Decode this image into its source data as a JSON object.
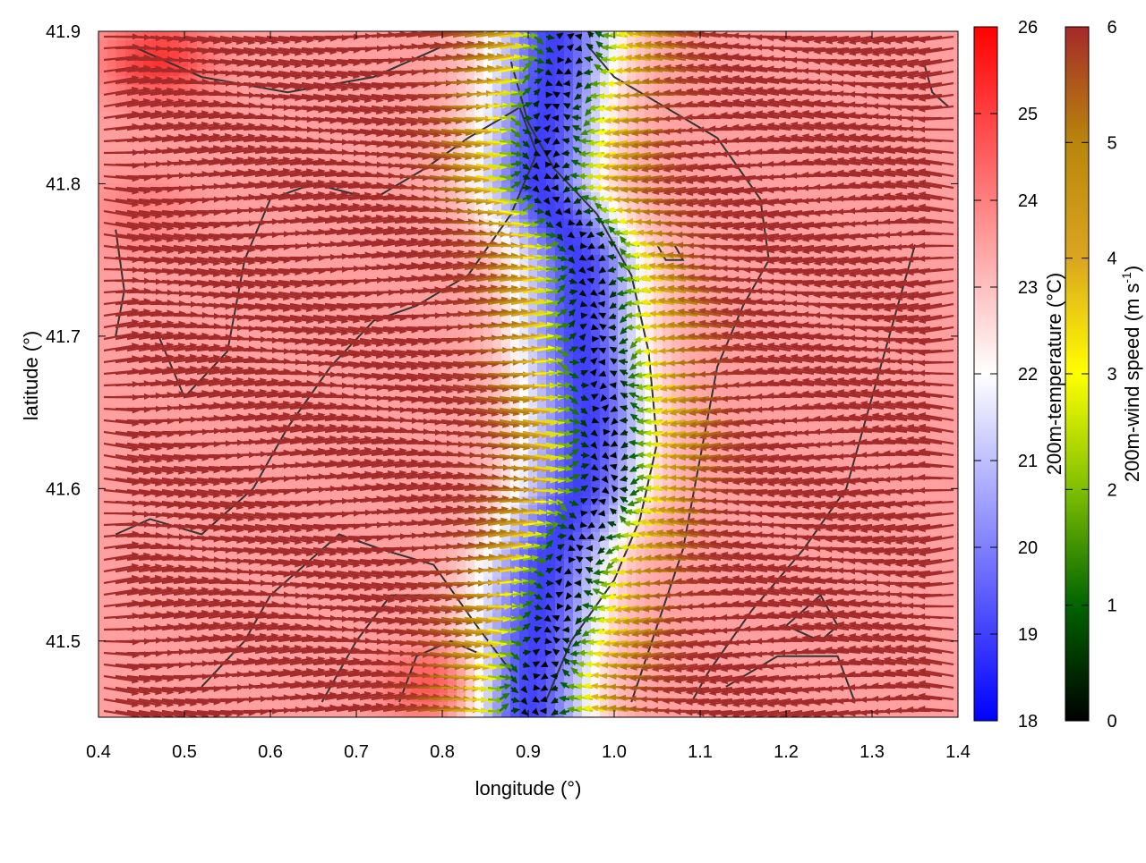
{
  "chart_data": {
    "type": "heatmap",
    "title": "",
    "xlabel": "longitude (°)",
    "ylabel": "latitude (°)",
    "xlim": [
      0.4,
      1.4
    ],
    "ylim": [
      41.45,
      41.9
    ],
    "xticks": [
      "0.4",
      "0.5",
      "0.6",
      "0.7",
      "0.8",
      "0.9",
      "1.0",
      "1.1",
      "1.2",
      "1.3",
      "1.4"
    ],
    "yticks": [
      "41.5",
      "41.6",
      "41.7",
      "41.8",
      "41.9"
    ],
    "grid": false,
    "temperature": {
      "label_main": "200m-temperature (",
      "label_unit": "°C",
      "label_close": ")",
      "range": [
        18,
        26
      ],
      "ticks": [
        "18",
        "19",
        "20",
        "21",
        "22",
        "23",
        "24",
        "25",
        "26"
      ],
      "colors": [
        "#0000ff",
        "#ffffff",
        "#ff0000"
      ]
    },
    "wind_speed": {
      "label_main": "200m-wind speed (m s",
      "label_sup": "-1",
      "label_close": ")",
      "range": [
        0,
        6
      ],
      "ticks": [
        "0",
        "1",
        "2",
        "3",
        "4",
        "5",
        "6"
      ],
      "colors": [
        "#000000",
        "#006400",
        "#7fbf00",
        "#ffff00",
        "#daa520",
        "#b8860b",
        "#a52a2a"
      ]
    },
    "temperature_field": {
      "cold_band": [
        [
          0.93,
          41.89
        ],
        [
          0.92,
          41.85
        ],
        [
          0.91,
          41.8
        ],
        [
          0.96,
          41.75
        ],
        [
          0.96,
          41.7
        ],
        [
          0.97,
          41.65
        ],
        [
          0.96,
          41.6
        ],
        [
          0.92,
          41.55
        ],
        [
          0.9,
          41.47
        ]
      ],
      "cold_min": 19.0,
      "warm_background": 23.5,
      "warm_spots": [
        [
          0.47,
          41.88,
          25.2
        ],
        [
          0.8,
          41.47,
          25.0
        ],
        [
          0.45,
          41.78,
          24.0
        ]
      ]
    },
    "wind_field": {
      "calm_axis": [
        [
          0.95,
          41.89
        ],
        [
          0.93,
          41.85
        ],
        [
          0.92,
          41.8
        ],
        [
          0.97,
          41.76
        ],
        [
          0.98,
          41.7
        ],
        [
          0.99,
          41.65
        ],
        [
          0.99,
          41.6
        ],
        [
          0.95,
          41.55
        ],
        [
          0.91,
          41.47
        ]
      ],
      "far_speed": 6.0,
      "west_direction": "east",
      "east_direction": "west"
    },
    "contours": [
      [
        [
          0.42,
          41.77
        ],
        [
          0.43,
          41.73
        ],
        [
          0.42,
          41.7
        ],
        [
          0.47,
          41.7
        ],
        [
          0.5,
          41.66
        ],
        [
          0.55,
          41.69
        ],
        [
          0.57,
          41.75
        ],
        [
          0.6,
          41.79
        ],
        [
          0.65,
          41.8
        ],
        [
          0.72,
          41.79
        ],
        [
          0.78,
          41.81
        ],
        [
          0.83,
          41.83
        ],
        [
          0.89,
          41.85
        ],
        [
          0.91,
          41.82
        ],
        [
          0.88,
          41.78
        ],
        [
          0.83,
          41.74
        ],
        [
          0.77,
          41.72
        ],
        [
          0.72,
          41.71
        ],
        [
          0.67,
          41.68
        ],
        [
          0.62,
          41.64
        ],
        [
          0.58,
          41.6
        ],
        [
          0.52,
          41.57
        ],
        [
          0.46,
          41.58
        ],
        [
          0.42,
          41.57
        ]
      ],
      [
        [
          0.52,
          41.47
        ],
        [
          0.57,
          41.5
        ],
        [
          0.6,
          41.53
        ],
        [
          0.64,
          41.55
        ],
        [
          0.68,
          41.57
        ],
        [
          0.73,
          41.56
        ],
        [
          0.79,
          41.55
        ],
        [
          0.84,
          41.51
        ],
        [
          0.88,
          41.48
        ]
      ],
      [
        [
          0.75,
          41.46
        ],
        [
          0.77,
          41.49
        ],
        [
          0.81,
          41.5
        ],
        [
          0.85,
          41.49
        ]
      ],
      [
        [
          0.66,
          41.46
        ],
        [
          0.7,
          41.5
        ],
        [
          0.74,
          41.53
        ],
        [
          0.8,
          41.53
        ]
      ],
      [
        [
          0.97,
          41.89
        ],
        [
          1.0,
          41.87
        ],
        [
          1.06,
          41.85
        ],
        [
          1.12,
          41.83
        ],
        [
          1.17,
          41.79
        ],
        [
          1.18,
          41.75
        ],
        [
          1.15,
          41.72
        ],
        [
          1.12,
          41.68
        ],
        [
          1.1,
          41.62
        ],
        [
          1.08,
          41.56
        ],
        [
          1.05,
          41.51
        ],
        [
          1.02,
          41.46
        ]
      ],
      [
        [
          0.92,
          41.46
        ],
        [
          0.95,
          41.5
        ],
        [
          1.0,
          41.54
        ],
        [
          1.03,
          41.58
        ],
        [
          1.05,
          41.63
        ],
        [
          1.04,
          41.69
        ],
        [
          1.02,
          41.74
        ],
        [
          0.98,
          41.78
        ],
        [
          0.93,
          41.81
        ],
        [
          0.9,
          41.84
        ],
        [
          0.88,
          41.88
        ]
      ],
      [
        [
          1.35,
          41.76
        ],
        [
          1.33,
          41.72
        ],
        [
          1.3,
          41.66
        ],
        [
          1.27,
          41.6
        ],
        [
          1.22,
          41.56
        ],
        [
          1.16,
          41.52
        ],
        [
          1.11,
          41.48
        ],
        [
          1.09,
          41.46
        ]
      ],
      [
        [
          1.13,
          41.47
        ],
        [
          1.19,
          41.49
        ],
        [
          1.26,
          41.49
        ],
        [
          1.28,
          41.46
        ]
      ],
      [
        [
          1.2,
          41.51
        ],
        [
          1.24,
          41.53
        ],
        [
          1.26,
          41.51
        ],
        [
          1.24,
          41.5
        ],
        [
          1.2,
          41.51
        ]
      ],
      [
        [
          1.36,
          41.88
        ],
        [
          1.37,
          41.86
        ],
        [
          1.39,
          41.85
        ]
      ],
      [
        [
          0.44,
          41.89
        ],
        [
          0.52,
          41.87
        ],
        [
          0.62,
          41.86
        ],
        [
          0.72,
          41.87
        ],
        [
          0.8,
          41.89
        ]
      ],
      [
        [
          1.05,
          41.76
        ],
        [
          1.07,
          41.76
        ],
        [
          1.08,
          41.75
        ],
        [
          1.06,
          41.75
        ],
        [
          1.05,
          41.76
        ]
      ]
    ]
  }
}
